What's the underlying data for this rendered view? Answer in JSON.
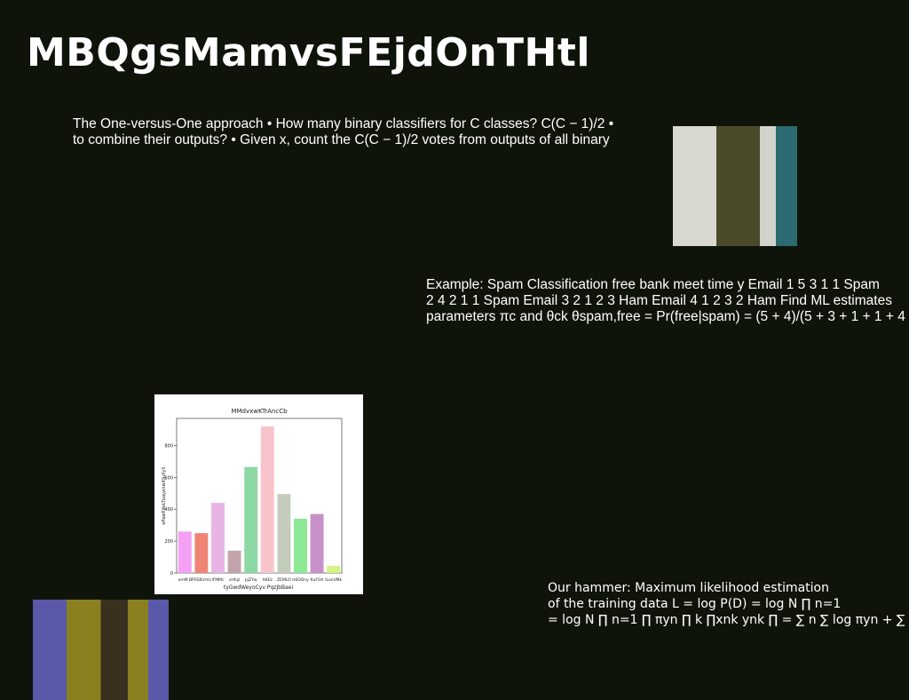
{
  "slide": {
    "title": "MBQgsMamvsFEjdOnTHtl",
    "para1": [
      "The One-versus-One approach • How many binary classifiers for C classes? C(C − 1)/2 •",
      "to combine their outputs? • Given x, count the C(C − 1)/2 votes from outputs of all binary"
    ],
    "para2": [
      "Example: Spam Classification free bank meet time y Email 1 5 3 1 1 Spam",
      "2 4 2 1 1 Spam Email 3 2 1 2 3 Ham Email 4 1 2 3 2 Ham Find ML estimates",
      "parameters πc and θck θspam,free = Pr(free|spam) = (5 + 4)/(5 + 3 + 1 + 1 + 4"
    ],
    "para3": [
      "Our hammer: Maximum likelihood estimation",
      "of the training data L = log P(D) = log N ∏ n=1",
      "= log N ∏ n=1 ∏ πyn ∏ k ∏xnk ynk ∏ = ∑ n ∑ log πyn + ∑ k"
    ]
  },
  "chart_data": {
    "type": "bar",
    "title": "MMdvxwKTrAncCb",
    "xlabel": "tyGwdWeyoCyv PqzJbBaei",
    "ylabel": "ePawEdoLTpaypnwIQuXyS",
    "categories": [
      "omM B",
      "FREBUrVc",
      "lFMMc",
      "sHhjz",
      "pjZYw",
      "AKEz",
      "ZEMLO",
      "IHiDQny",
      "KuFOA",
      "ILonVMk"
    ],
    "values": [
      260,
      250,
      440,
      140,
      665,
      920,
      495,
      340,
      370,
      45
    ],
    "colors": [
      "#f4a0f4",
      "#f08474",
      "#e8b4e4",
      "#c4a4ac",
      "#8cd8a4",
      "#f8c4cc",
      "#c4ccbc",
      "#8ce894",
      "#c890c8",
      "#d4f484"
    ],
    "ylim": [
      0,
      970
    ],
    "yticks": [
      0,
      200,
      400,
      600,
      800
    ]
  }
}
